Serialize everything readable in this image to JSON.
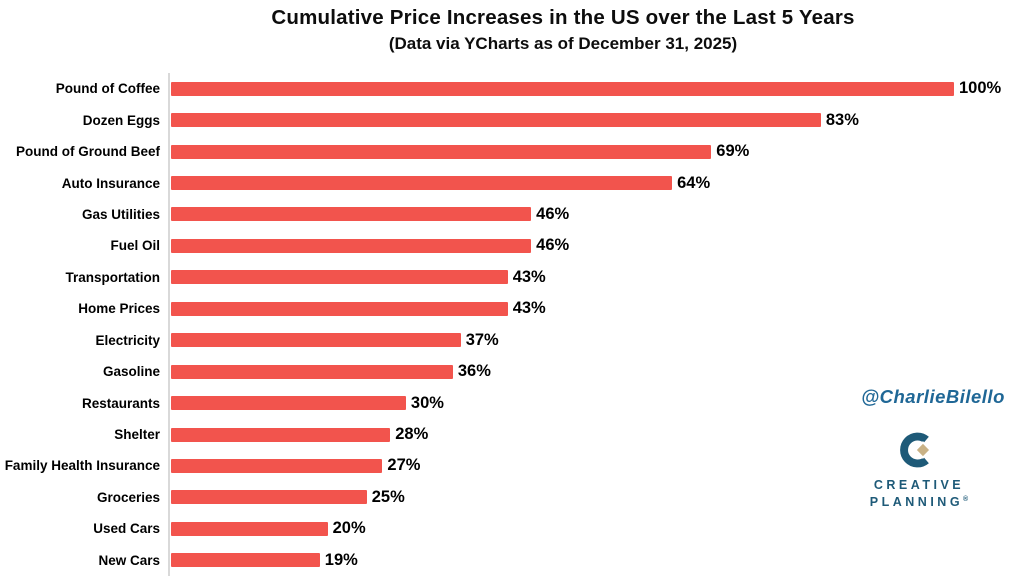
{
  "chart_data": {
    "type": "bar",
    "orientation": "horizontal",
    "title": "Cumulative Price Increases in the US over the Last 5 Years",
    "subtitle": "(Data via YCharts as of December 31, 2025)",
    "categories": [
      "Pound of Coffee",
      "Dozen Eggs",
      "Pound of Ground Beef",
      "Auto Insurance",
      "Gas Utilities",
      "Fuel Oil",
      "Transportation",
      "Home Prices",
      "Electricity",
      "Gasoline",
      "Restaurants",
      "Shelter",
      "Family Health Insurance",
      "Groceries",
      "Used Cars",
      "New Cars"
    ],
    "values": [
      100,
      83,
      69,
      64,
      46,
      46,
      43,
      43,
      37,
      36,
      30,
      28,
      27,
      25,
      20,
      19
    ],
    "value_suffix": "%",
    "value_range": [
      0,
      100
    ],
    "grid": false,
    "legend": false,
    "data_labels": "end-of-bar"
  },
  "watermark": "@CharlieBilello",
  "logo": {
    "line1": "CREATIVE",
    "line2": "PLANNING",
    "registered": "®"
  },
  "colors": {
    "bar": "#F2544D",
    "axis": "#D9D9D9",
    "text": "#000000",
    "watermark_blue": "#1F6796",
    "logo_teal": "#1E5A78",
    "logo_gold": "#C9B286"
  }
}
